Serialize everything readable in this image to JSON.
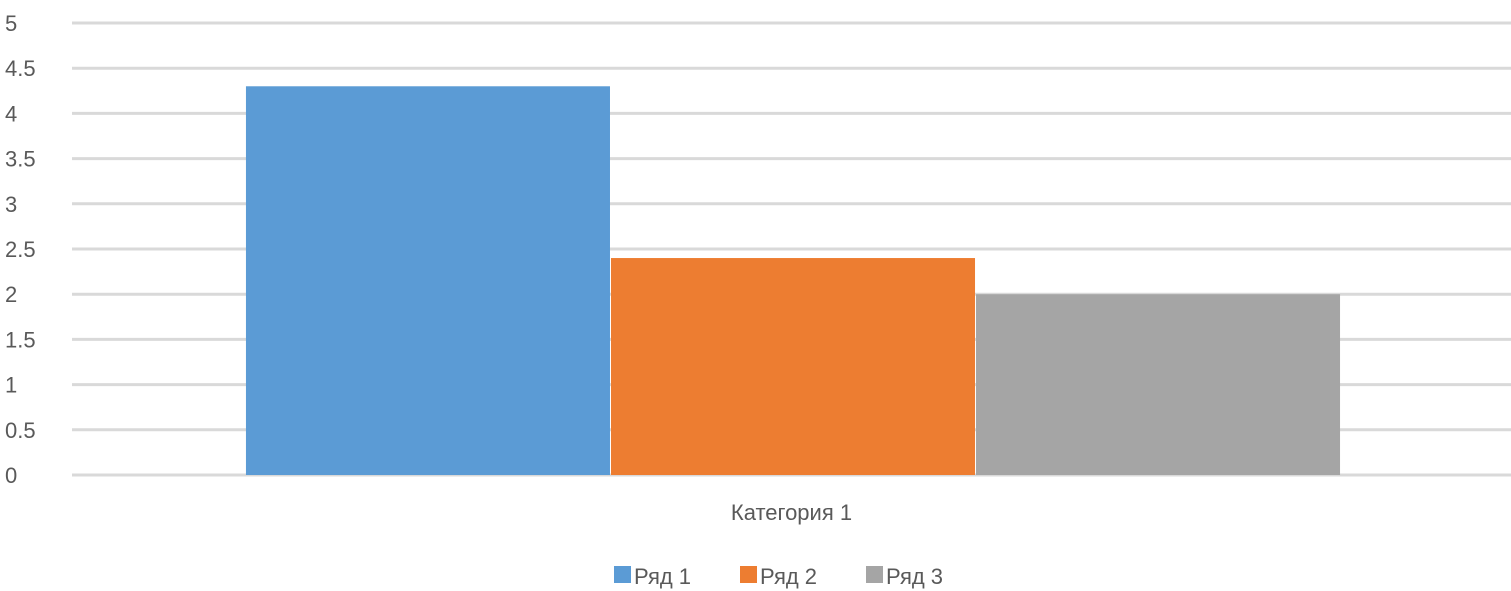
{
  "chart_data": {
    "type": "bar",
    "categories": [
      "Категория 1"
    ],
    "series": [
      {
        "name": "Ряд 1",
        "values": [
          4.3
        ],
        "color": "#5b9bd5"
      },
      {
        "name": "Ряд 2",
        "values": [
          2.4
        ],
        "color": "#ed7d31"
      },
      {
        "name": "Ряд 3",
        "values": [
          2
        ],
        "color": "#a5a5a5"
      }
    ],
    "y_ticks": [
      "0",
      "0.5",
      "1",
      "1.5",
      "2",
      "2.5",
      "3",
      "3.5",
      "4",
      "4.5",
      "5"
    ],
    "ylim": [
      0,
      5
    ],
    "grid": true,
    "gridline_color": "#d9d9d9",
    "legend_position": "bottom"
  }
}
